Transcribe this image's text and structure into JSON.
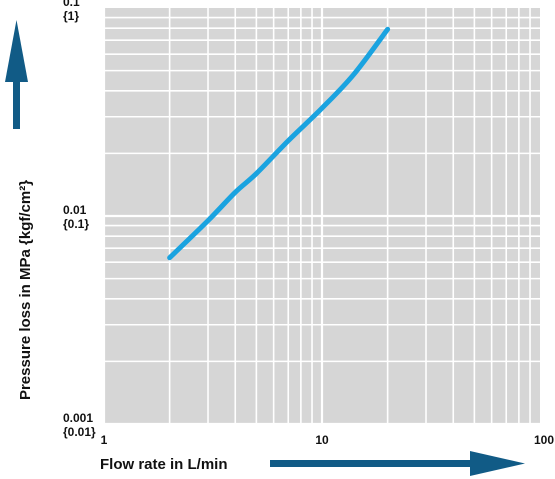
{
  "chart_data": {
    "type": "line",
    "xlabel": "Flow rate in L/min",
    "ylabel": "Pressure loss in MPa {kgf/cm²}",
    "x_scale": "log",
    "y_scale": "log",
    "xlim": [
      1,
      100
    ],
    "ylim": [
      0.001,
      0.1
    ],
    "grid": true,
    "x_ticks": [
      {
        "value": 1,
        "label": "1"
      },
      {
        "value": 10,
        "label": "10"
      },
      {
        "value": 100,
        "label": "100"
      }
    ],
    "y_ticks": [
      {
        "value": 0.1,
        "label": "0.1",
        "sublabel": "{1}"
      },
      {
        "value": 0.01,
        "label": "0.01",
        "sublabel": "{0.1}"
      },
      {
        "value": 0.001,
        "label": "0.001",
        "sublabel": "{0.01}"
      }
    ],
    "series": [
      {
        "color": "#1aa3e0",
        "x": [
          2,
          3,
          4,
          5,
          7,
          10,
          14,
          20
        ],
        "y": [
          0.0063,
          0.0095,
          0.013,
          0.016,
          0.023,
          0.033,
          0.048,
          0.079
        ]
      }
    ]
  },
  "colors": {
    "plot_background": "#d6d6d6",
    "grid": "#ffffff",
    "arrow": "#115b86",
    "line": "#1aa3e0"
  }
}
